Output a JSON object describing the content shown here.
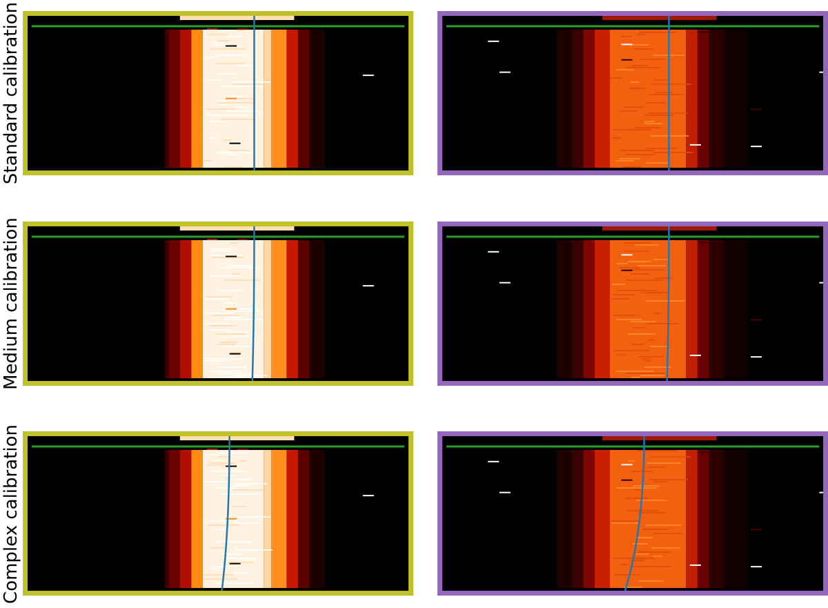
{
  "rows": [
    {
      "label": "Standard calibration",
      "blue_line": {
        "x_top": 0.595,
        "x_bottom": 0.595
      }
    },
    {
      "label": "Medium calibration",
      "blue_line": {
        "x_top": 0.595,
        "x_bottom": 0.59
      }
    },
    {
      "label": "Complex calibration",
      "blue_line": {
        "x_top": 0.53,
        "x_bottom": 0.51
      }
    }
  ],
  "columns": [
    {
      "frame_color": "#c0c02a",
      "variant": "bright"
    },
    {
      "frame_color": "#9467bd",
      "variant": "dim"
    }
  ],
  "colors": {
    "green_line": "#2ca02c",
    "blue_line": "#1f77b4",
    "background": "#000000"
  }
}
